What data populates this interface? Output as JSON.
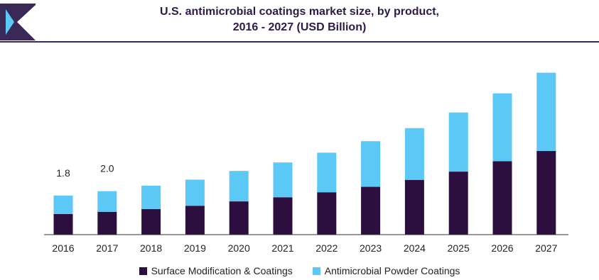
{
  "header": {
    "title_line1": "U.S. antimicrobial coatings market size, by product,",
    "title_line2": "2016 - 2027 (USD Billion)"
  },
  "colors": {
    "brand": "#3a2856",
    "series1": "#2c0f3f",
    "series2": "#5bc8f5",
    "axis": "#333333"
  },
  "chart_data": {
    "type": "bar",
    "stacked": true,
    "categories": [
      "2016",
      "2017",
      "2018",
      "2019",
      "2020",
      "2021",
      "2022",
      "2023",
      "2024",
      "2025",
      "2026",
      "2027"
    ],
    "series": [
      {
        "name": "Surface Modification & Coatings",
        "values": [
          0.95,
          1.05,
          1.18,
          1.33,
          1.53,
          1.72,
          1.95,
          2.2,
          2.52,
          2.9,
          3.38,
          3.85
        ]
      },
      {
        "name": "Antimicrobial Powder Coatings",
        "values": [
          0.85,
          0.95,
          1.07,
          1.2,
          1.4,
          1.6,
          1.82,
          2.1,
          2.38,
          2.72,
          3.12,
          3.6
        ]
      }
    ],
    "data_labels": [
      {
        "category": "2016",
        "text": "1.8"
      },
      {
        "category": "2017",
        "text": "2.0"
      }
    ],
    "ylim": [
      0,
      7.6
    ],
    "legend_position": "bottom",
    "grid": false,
    "title": "U.S. antimicrobial coatings market size, by product, 2016 - 2027 (USD Billion)"
  }
}
